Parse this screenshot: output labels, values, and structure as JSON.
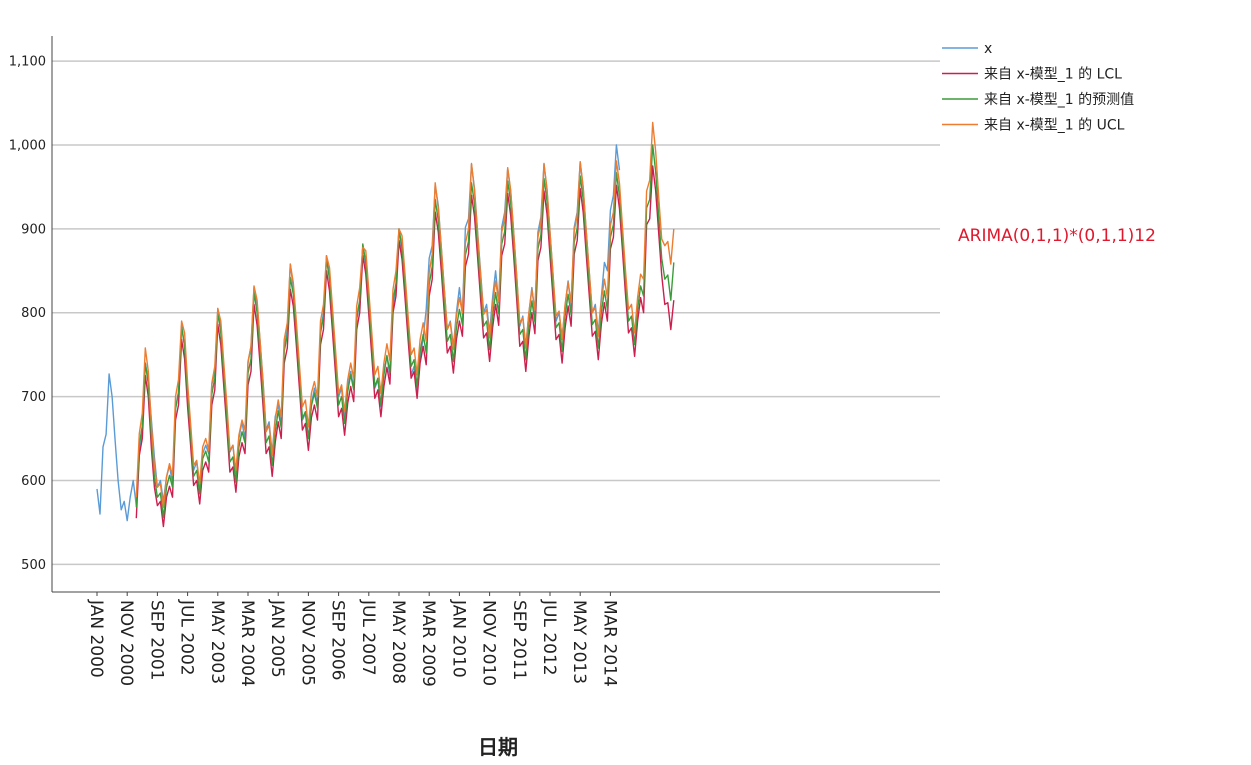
{
  "chart_data": {
    "type": "line",
    "xlabel": "日期",
    "ylabel": "",
    "ylim": [
      467,
      1130
    ],
    "yticks": [
      500,
      600,
      700,
      800,
      900,
      1000,
      1100
    ],
    "ytick_labels": [
      "500",
      "600",
      "700",
      "800",
      "900",
      "1,000",
      "1,100"
    ],
    "xticks": [
      "JAN 2000",
      "NOV 2000",
      "SEP 2001",
      "JUL 2002",
      "MAY 2003",
      "MAR 2004",
      "JAN 2005",
      "NOV 2005",
      "SEP 2006",
      "JUL 2007",
      "MAY 2008",
      "MAR 2009",
      "JAN 2010",
      "NOV 2010",
      "SEP 2011",
      "JUL 2012",
      "MAY 2013",
      "MAR 2014"
    ],
    "annotation": {
      "text": "ARIMA(0,1,1)*(0,1,1)12",
      "color": "#e0182d"
    },
    "grid": true,
    "legend_position": "top-right",
    "series": [
      {
        "name": "x",
        "color": "#5b9bd5",
        "start": "2000-01",
        "values": [
          590,
          560,
          640,
          655,
          727,
          700,
          648,
          600,
          565,
          575,
          552,
          580,
          600,
          570,
          630,
          660,
          740,
          720,
          672,
          628,
          592,
          600,
          575,
          604,
          618,
          596,
          686,
          705,
          785,
          760,
          706,
          660,
          612,
          622,
          592,
          632,
          642,
          632,
          714,
          730,
          805,
          780,
          734,
          682,
          634,
          642,
          608,
          650,
          670,
          648,
          740,
          760,
          830,
          810,
          766,
          718,
          660,
          670,
          632,
          676,
          690,
          668,
          758,
          780,
          858,
          830,
          782,
          730,
          672,
          680,
          650,
          690,
          710,
          690,
          778,
          800,
          868,
          846,
          798,
          748,
          700,
          710,
          672,
          712,
          730,
          710,
          792,
          812,
          878,
          856,
          810,
          758,
          710,
          720,
          688,
          730,
          748,
          725,
          808,
          830,
          900,
          872,
          824,
          778,
          726,
          736,
          702,
          746,
          770,
          804,
          865,
          880,
          952,
          928,
          878,
          828,
          780,
          790,
          760,
          800,
          830,
          798,
          902,
          912,
          977,
          948,
          898,
          850,
          800,
          810,
          776,
          818,
          850,
          812,
          902,
          920,
          972,
          944,
          894,
          842,
          784,
          796,
          760,
          800,
          830,
          798,
          896,
          914,
          978,
          946,
          896,
          846,
          790,
          800,
          770,
          808,
          838,
          808,
          902,
          920,
          980,
          948,
          898,
          848,
          800,
          810,
          776,
          818,
          860,
          850,
          922,
          940,
          1000,
          970
        ]
      },
      {
        "name": "来自 x-模型_1 的 LCL",
        "color": "#cc1f4e",
        "start": "2001-02",
        "values": [
          555,
          630,
          650,
          725,
          700,
          638,
          592,
          570,
          575,
          545,
          580,
          593,
          580,
          672,
          690,
          768,
          745,
          688,
          642,
          594,
          600,
          572,
          612,
          622,
          610,
          690,
          708,
          786,
          762,
          712,
          662,
          610,
          616,
          586,
          628,
          645,
          632,
          714,
          730,
          810,
          785,
          738,
          688,
          632,
          640,
          605,
          645,
          670,
          650,
          740,
          758,
          828,
          808,
          762,
          712,
          660,
          668,
          636,
          675,
          690,
          672,
          762,
          780,
          850,
          826,
          776,
          726,
          676,
          686,
          654,
          692,
          712,
          694,
          780,
          800,
          868,
          846,
          798,
          748,
          698,
          708,
          676,
          712,
          735,
          715,
          800,
          820,
          886,
          864,
          818,
          768,
          722,
          730,
          698,
          740,
          760,
          738,
          820,
          840,
          920,
          896,
          850,
          800,
          752,
          760,
          728,
          768,
          790,
          772,
          855,
          870,
          940,
          915,
          868,
          818,
          770,
          776,
          742,
          782,
          810,
          785,
          868,
          882,
          942,
          916,
          866,
          814,
          760,
          766,
          730,
          772,
          800,
          775,
          862,
          878,
          945,
          918,
          868,
          818,
          768,
          774,
          740,
          782,
          808,
          784,
          870,
          886,
          948,
          920,
          870,
          820,
          772,
          778,
          744,
          786,
          812,
          790,
          876,
          890,
          952,
          924,
          874,
          822,
          776,
          782,
          748,
          790,
          818,
          800,
          905,
          912,
          975,
          945,
          895,
          845,
          810,
          812,
          780,
          815
        ]
      },
      {
        "name": "来自 x-模型_1 的预测值",
        "color": "#3c9c3c",
        "start": "2001-02",
        "values": [
          568,
          643,
          665,
          740,
          715,
          652,
          604,
          580,
          585,
          556,
          592,
          606,
          592,
          685,
          705,
          783,
          760,
          702,
          655,
          605,
          612,
          584,
          626,
          635,
          622,
          703,
          722,
          800,
          776,
          725,
          675,
          622,
          628,
          598,
          640,
          658,
          645,
          728,
          745,
          824,
          800,
          752,
          702,
          645,
          653,
          618,
          658,
          683,
          663,
          754,
          773,
          842,
          822,
          776,
          726,
          674,
          682,
          650,
          689,
          704,
          686,
          776,
          795,
          864,
          840,
          790,
          740,
          690,
          700,
          668,
          706,
          726,
          708,
          794,
          815,
          882,
          860,
          812,
          762,
          712,
          722,
          690,
          726,
          749,
          729,
          814,
          835,
          900,
          878,
          832,
          782,
          736,
          744,
          712,
          754,
          774,
          752,
          834,
          855,
          935,
          910,
          864,
          814,
          766,
          774,
          742,
          782,
          804,
          786,
          869,
          885,
          955,
          930,
          882,
          832,
          784,
          790,
          756,
          796,
          824,
          799,
          882,
          897,
          957,
          931,
          880,
          828,
          774,
          780,
          744,
          786,
          814,
          789,
          876,
          893,
          960,
          933,
          882,
          832,
          782,
          788,
          754,
          796,
          822,
          798,
          884,
          901,
          963,
          935,
          884,
          834,
          786,
          792,
          758,
          800,
          826,
          804,
          890,
          905,
          967,
          939,
          888,
          836,
          790,
          796,
          762,
          804,
          832,
          820,
          925,
          935,
          1000,
          968,
          915,
          865,
          840,
          845,
          815,
          860
        ]
      },
      {
        "name": "来自 x-模型_1 的 UCL",
        "color": "#ed7d31",
        "start": "2001-02",
        "values": [
          580,
          656,
          680,
          758,
          730,
          666,
          616,
          592,
          596,
          568,
          604,
          620,
          606,
          700,
          720,
          790,
          776,
          716,
          668,
          618,
          624,
          596,
          640,
          650,
          636,
          716,
          736,
          805,
          790,
          740,
          690,
          636,
          642,
          612,
          654,
          672,
          660,
          742,
          760,
          832,
          815,
          766,
          716,
          658,
          666,
          630,
          672,
          696,
          676,
          768,
          788,
          858,
          836,
          790,
          740,
          688,
          696,
          664,
          704,
          718,
          700,
          790,
          810,
          868,
          854,
          804,
          754,
          704,
          714,
          682,
          720,
          740,
          722,
          808,
          830,
          878,
          874,
          826,
          776,
          726,
          736,
          704,
          740,
          763,
          743,
          828,
          850,
          900,
          892,
          846,
          796,
          750,
          758,
          726,
          768,
          788,
          766,
          848,
          870,
          955,
          924,
          878,
          828,
          780,
          788,
          756,
          796,
          818,
          800,
          883,
          900,
          978,
          945,
          896,
          846,
          798,
          804,
          770,
          810,
          838,
          813,
          896,
          912,
          973,
          946,
          894,
          842,
          788,
          794,
          758,
          800,
          828,
          803,
          890,
          908,
          977,
          948,
          896,
          846,
          796,
          802,
          768,
          810,
          836,
          812,
          898,
          916,
          980,
          950,
          898,
          848,
          800,
          806,
          772,
          814,
          840,
          818,
          904,
          920,
          981,
          954,
          902,
          850,
          804,
          810,
          776,
          818,
          846,
          840,
          945,
          958,
          1027,
          992,
          938,
          888,
          880,
          885,
          858,
          900
        ]
      }
    ]
  }
}
